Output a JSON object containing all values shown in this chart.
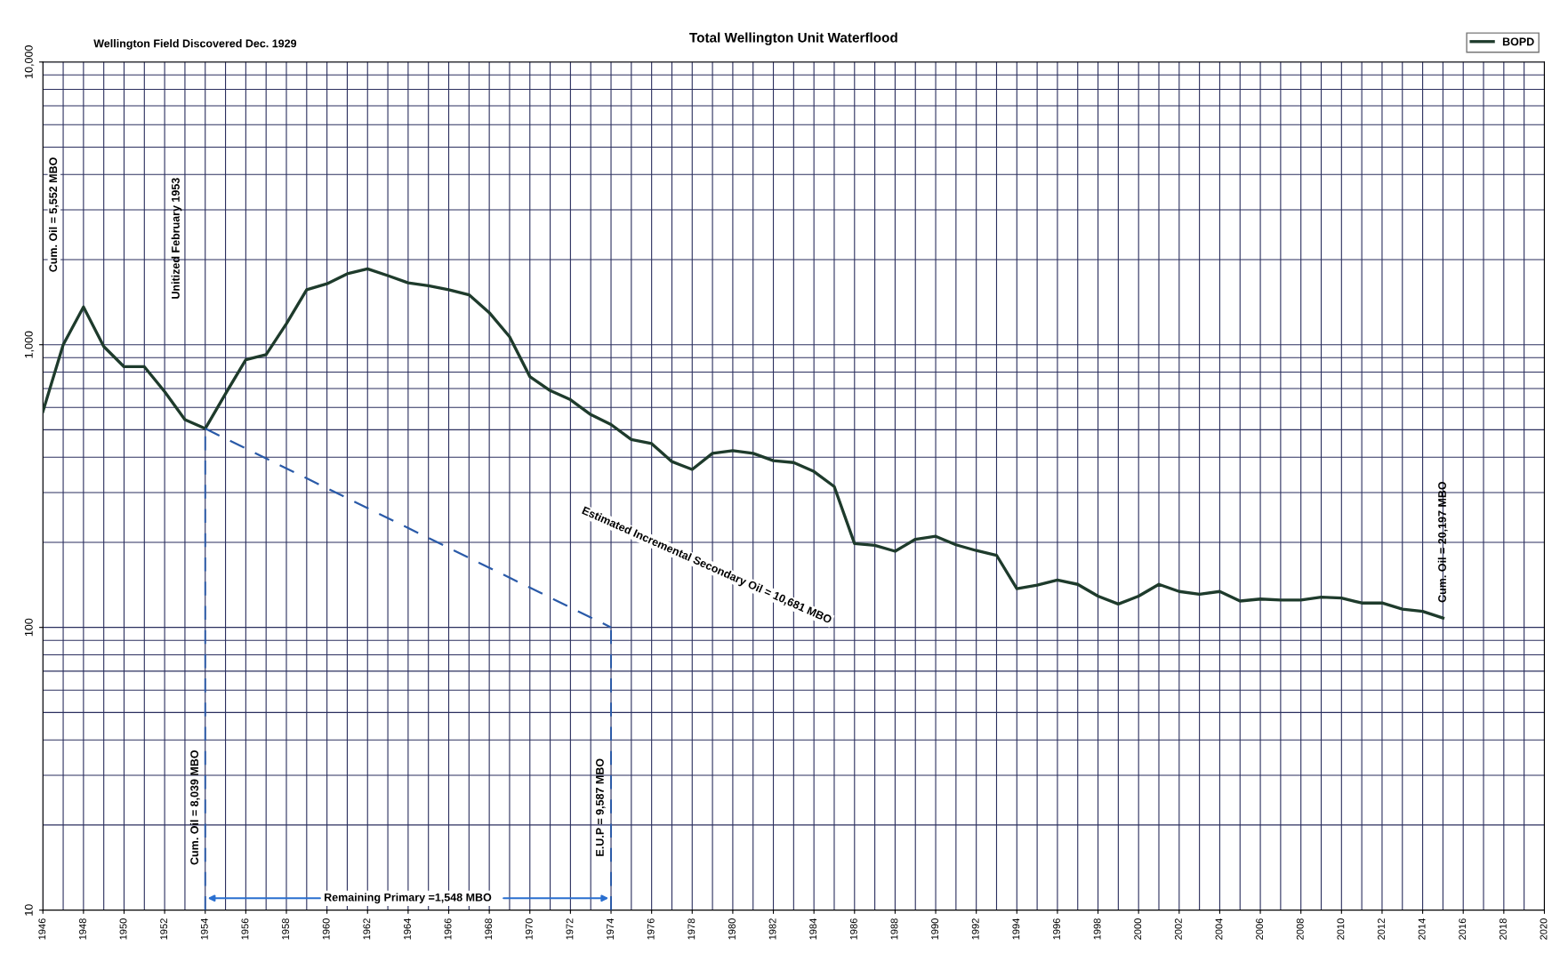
{
  "chart_data": {
    "type": "line",
    "title": "Total Wellington Unit Waterflood",
    "x": [
      1946,
      1947,
      1948,
      1949,
      1950,
      1951,
      1952,
      1953,
      1954,
      1955,
      1956,
      1957,
      1958,
      1959,
      1960,
      1961,
      1962,
      1963,
      1964,
      1965,
      1966,
      1967,
      1968,
      1969,
      1970,
      1971,
      1972,
      1973,
      1974,
      1975,
      1976,
      1977,
      1978,
      1979,
      1980,
      1981,
      1982,
      1983,
      1984,
      1985,
      1986,
      1987,
      1988,
      1989,
      1990,
      1991,
      1992,
      1993,
      1994,
      1995,
      1996,
      1997,
      1998,
      1999,
      2000,
      2001,
      2002,
      2003,
      2004,
      2005,
      2006,
      2007,
      2008,
      2009,
      2010,
      2011,
      2012,
      2013,
      2014,
      2015
    ],
    "series": [
      {
        "name": "BOPD",
        "color": "#1e3b2c",
        "line_style": "solid",
        "values": [
          580,
          1000,
          1360,
          985,
          836,
          836,
          682,
          543,
          505,
          671,
          885,
          922,
          1186,
          1564,
          1643,
          1782,
          1856,
          1755,
          1656,
          1616,
          1564,
          1502,
          1298,
          1067,
          771,
          688,
          639,
          566,
          522,
          462,
          447,
          386,
          362,
          413,
          422,
          413,
          389,
          383,
          356,
          315,
          198,
          195,
          186,
          205,
          210,
          196,
          187,
          180,
          137,
          141,
          147,
          142,
          129,
          121,
          129,
          142,
          134,
          131,
          134,
          124,
          126,
          125,
          125,
          128,
          127,
          122,
          122,
          116,
          114,
          108
        ]
      },
      {
        "color": "#2a5aa8",
        "line_style": "dashed",
        "x": [
          1954,
          1974
        ],
        "values": [
          505,
          100
        ]
      }
    ],
    "ref_lines": [
      {
        "axis": "x",
        "value": 1954,
        "color": "#2a5aa8",
        "line_style": "dashed"
      },
      {
        "axis": "x",
        "value": 1974,
        "color": "#2a5aa8",
        "line_style": "dashed"
      }
    ],
    "annotations": [
      "Wellington Field Discovered Dec. 1929",
      "Cum. Oil = 5,552 MBO",
      "Unitized February 1953",
      "Cum. Oil = 8,039 MBO",
      "E.U.P = 9,587 MBO",
      "Remaining Primary =1,548 MBO",
      "Estimated Incremental Secondary Oil = 10,681 MBO",
      "Cum. Oil = 20,197 MBO"
    ],
    "log": true,
    "xlim": [
      1946,
      2020
    ],
    "xticks": [
      1946,
      1948,
      1950,
      1952,
      1954,
      1956,
      1958,
      1960,
      1962,
      1964,
      1966,
      1968,
      1970,
      1972,
      1974,
      1976,
      1978,
      1980,
      1982,
      1984,
      1986,
      1988,
      1990,
      1992,
      1994,
      1996,
      1998,
      2000,
      2002,
      2004,
      2006,
      2008,
      2010,
      2012,
      2014,
      2016,
      2018,
      2020
    ],
    "ylim": [
      10,
      10000
    ],
    "yticks": [
      10,
      100,
      {
        "value": 1000,
        "label": "1,000"
      },
      {
        "value": 10000,
        "label": "10,000"
      }
    ],
    "grid": true,
    "legend": "top right",
    "marker": "none"
  }
}
